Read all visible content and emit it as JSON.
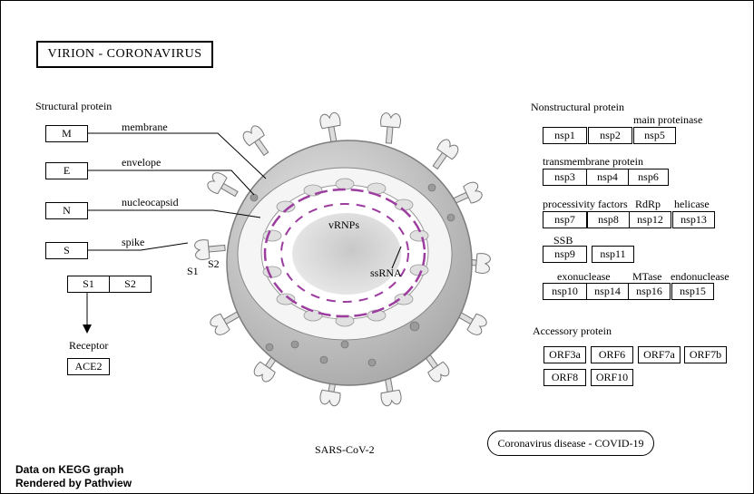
{
  "title": "VIRION  -  CORONAVIRUS",
  "structural": {
    "heading": "Structural protein",
    "boxes": {
      "m": "M",
      "e": "E",
      "n": "N",
      "s": "S",
      "s1": "S1",
      "s2": "S2",
      "ace2": "ACE2"
    },
    "labels": {
      "membrane": "membrane",
      "envelope": "envelope",
      "nucleocapsid": "nucleocapsid",
      "spike": "spike",
      "s1": "S1",
      "s2": "S2",
      "receptor": "Receptor"
    }
  },
  "virion": {
    "vrnps": "vRNPs",
    "ssrna": "ssRNA",
    "caption": "SARS-CoV-2"
  },
  "nonstructural": {
    "heading": "Nonstructural protein",
    "main_proteinase": "main proteinase",
    "transmembrane": "transmembrane protein",
    "processivity": "processivity factors",
    "rdrp": "RdRp",
    "helicase": "helicase",
    "ssb": "SSB",
    "exonuclease": "exonuclease",
    "mtase": "MTase",
    "endonuclease": "endonuclease",
    "nsp": {
      "nsp1": "nsp1",
      "nsp2": "nsp2",
      "nsp5": "nsp5",
      "nsp3": "nsp3",
      "nsp4": "nsp4",
      "nsp6": "nsp6",
      "nsp7": "nsp7",
      "nsp8": "nsp8",
      "nsp12": "nsp12",
      "nsp13": "nsp13",
      "nsp9": "nsp9",
      "nsp11": "nsp11",
      "nsp10": "nsp10",
      "nsp14": "nsp14",
      "nsp16": "nsp16",
      "nsp15": "nsp15"
    }
  },
  "accessory": {
    "heading": "Accessory protein",
    "orf": {
      "orf3a": "ORF3a",
      "orf6": "ORF6",
      "orf7a": "ORF7a",
      "orf7b": "ORF7b",
      "orf8": "ORF8",
      "orf10": "ORF10"
    }
  },
  "disease": "Coronavirus disease - COVID-19",
  "footer": {
    "line1": "Data on KEGG graph",
    "line2": "Rendered by Pathview"
  },
  "colors": {
    "rna": "#9b3c9e",
    "shell": "#bdbdbd",
    "core": "#d9d9d9"
  }
}
